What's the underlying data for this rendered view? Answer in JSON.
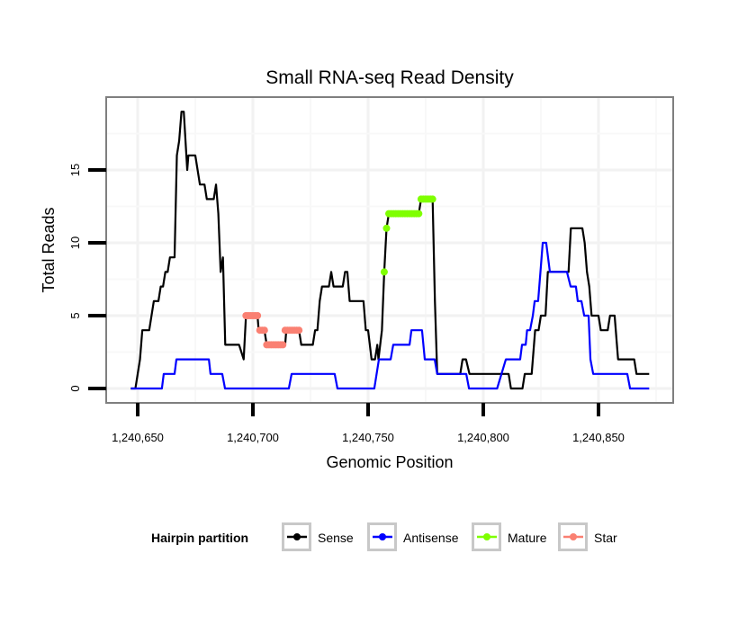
{
  "chart_data": {
    "type": "line",
    "title": "Small RNA-seq Read Density",
    "xlabel": "Genomic Position",
    "ylabel": "Total Reads",
    "xlim": [
      1240636,
      1240874
    ],
    "ylim": [
      -1,
      20
    ],
    "xticks": [
      1240650,
      1240700,
      1240750,
      1240800,
      1240850
    ],
    "xtick_labels": [
      "1,240,650",
      "1,240,700",
      "1,240,750",
      "1,240,800",
      "1,240,850"
    ],
    "yticks": [
      0,
      5,
      10,
      15
    ],
    "ytick_labels": [
      "0",
      "5",
      "10",
      "15"
    ],
    "grid": true,
    "legend": {
      "title": "Hairpin partition",
      "placement": "bottom",
      "entries": [
        "Sense",
        "Antisense",
        "Mature",
        "Star"
      ]
    },
    "colors": {
      "Sense": "#000000",
      "Antisense": "#0000ff",
      "Mature": "#7fff00",
      "Star": "#fa8072"
    },
    "series": [
      {
        "name": "Sense",
        "style": "line",
        "points": [
          [
            1240647,
            0
          ],
          [
            1240649,
            0
          ],
          [
            1240651,
            2
          ],
          [
            1240652,
            4
          ],
          [
            1240655,
            4
          ],
          [
            1240657,
            6
          ],
          [
            1240659,
            6
          ],
          [
            1240660,
            7
          ],
          [
            1240661,
            7
          ],
          [
            1240662,
            8
          ],
          [
            1240663,
            8
          ],
          [
            1240664,
            9
          ],
          [
            1240666,
            9
          ],
          [
            1240667,
            16
          ],
          [
            1240668,
            17
          ],
          [
            1240669,
            19
          ],
          [
            1240670,
            19
          ],
          [
            1240671.5,
            15
          ],
          [
            1240672,
            16
          ],
          [
            1240675,
            16
          ],
          [
            1240677,
            14
          ],
          [
            1240679,
            14
          ],
          [
            1240680,
            13
          ],
          [
            1240683,
            13
          ],
          [
            1240684,
            14
          ],
          [
            1240685,
            12
          ],
          [
            1240686,
            8
          ],
          [
            1240687,
            9
          ],
          [
            1240688,
            3
          ],
          [
            1240694,
            3
          ],
          [
            1240696,
            2
          ],
          [
            1240697,
            5
          ],
          [
            1240702,
            5
          ],
          [
            1240702.5,
            4
          ],
          [
            1240705,
            4
          ],
          [
            1240706,
            3
          ],
          [
            1240714,
            3
          ],
          [
            1240714.5,
            4
          ],
          [
            1240720,
            4
          ],
          [
            1240721,
            3
          ],
          [
            1240726,
            3
          ],
          [
            1240727,
            4
          ],
          [
            1240728,
            4
          ],
          [
            1240729,
            6
          ],
          [
            1240730,
            7
          ],
          [
            1240733,
            7
          ],
          [
            1240734,
            8
          ],
          [
            1240735,
            7
          ],
          [
            1240739,
            7
          ],
          [
            1240740,
            8
          ],
          [
            1240741,
            8
          ],
          [
            1240742,
            6
          ],
          [
            1240748,
            6
          ],
          [
            1240749,
            4
          ],
          [
            1240750,
            4
          ],
          [
            1240751.5,
            2
          ],
          [
            1240753,
            2
          ],
          [
            1240754,
            3
          ],
          [
            1240754.5,
            2
          ],
          [
            1240756,
            4
          ],
          [
            1240757,
            8
          ],
          [
            1240758,
            11
          ],
          [
            1240759,
            12
          ],
          [
            1240772,
            12
          ],
          [
            1240773,
            13
          ],
          [
            1240778,
            13
          ],
          [
            1240779,
            6
          ],
          [
            1240780,
            1
          ],
          [
            1240790,
            1
          ],
          [
            1240791,
            2
          ],
          [
            1240792.5,
            2
          ],
          [
            1240794,
            1
          ],
          [
            1240811,
            1
          ],
          [
            1240812,
            0
          ],
          [
            1240817,
            0
          ],
          [
            1240818,
            1
          ],
          [
            1240821,
            1
          ],
          [
            1240822,
            3
          ],
          [
            1240822.5,
            4
          ],
          [
            1240824,
            4
          ],
          [
            1240825,
            5
          ],
          [
            1240827,
            5
          ],
          [
            1240828,
            8
          ],
          [
            1240837,
            8
          ],
          [
            1240838,
            11
          ],
          [
            1240843,
            11
          ],
          [
            1240844,
            10
          ],
          [
            1240845,
            8
          ],
          [
            1240846,
            7
          ],
          [
            1240847,
            5
          ],
          [
            1240850,
            5
          ],
          [
            1240851,
            4
          ],
          [
            1240854,
            4
          ],
          [
            1240855,
            5
          ],
          [
            1240857,
            5
          ],
          [
            1240858.5,
            2
          ],
          [
            1240865.5,
            2
          ],
          [
            1240866.5,
            1
          ],
          [
            1240872,
            1
          ]
        ]
      },
      {
        "name": "Antisense",
        "style": "line",
        "points": [
          [
            1240647,
            0
          ],
          [
            1240660.5,
            0
          ],
          [
            1240661.3,
            1
          ],
          [
            1240666,
            1
          ],
          [
            1240666.8,
            2
          ],
          [
            1240680.9,
            2
          ],
          [
            1240681.6,
            1
          ],
          [
            1240686.7,
            1
          ],
          [
            1240687.9,
            0
          ],
          [
            1240715.6,
            0
          ],
          [
            1240716.8,
            1
          ],
          [
            1240735.5,
            1
          ],
          [
            1240736.7,
            0
          ],
          [
            1240752.7,
            0
          ],
          [
            1240754.7,
            2
          ],
          [
            1240759.8,
            2
          ],
          [
            1240760.9,
            3
          ],
          [
            1240768,
            3
          ],
          [
            1240768.8,
            4
          ],
          [
            1240773.4,
            4
          ],
          [
            1240774.6,
            2
          ],
          [
            1240778.9,
            2
          ],
          [
            1240780,
            1
          ],
          [
            1240792.6,
            1
          ],
          [
            1240793.8,
            0
          ],
          [
            1240806,
            0
          ],
          [
            1240809.8,
            2
          ],
          [
            1240816,
            2
          ],
          [
            1240816.8,
            3
          ],
          [
            1240818.4,
            3
          ],
          [
            1240819,
            4
          ],
          [
            1240820.3,
            4
          ],
          [
            1240821.5,
            5
          ],
          [
            1240822.3,
            6
          ],
          [
            1240823.8,
            6
          ],
          [
            1240825.8,
            10
          ],
          [
            1240827.3,
            10
          ],
          [
            1240828.9,
            8
          ],
          [
            1240836.3,
            8
          ],
          [
            1240837.9,
            7
          ],
          [
            1240840.2,
            7
          ],
          [
            1240841,
            6
          ],
          [
            1240842.6,
            6
          ],
          [
            1240843.8,
            5
          ],
          [
            1240845.7,
            5
          ],
          [
            1240846.5,
            2
          ],
          [
            1240847.7,
            1
          ],
          [
            1240862.5,
            1
          ],
          [
            1240863.7,
            0
          ],
          [
            1240872,
            0
          ]
        ]
      },
      {
        "name": "Mature",
        "style": "points",
        "points": [
          [
            1240757,
            8
          ],
          [
            1240758,
            11
          ],
          [
            1240759,
            12
          ],
          [
            1240760,
            12
          ],
          [
            1240761,
            12
          ],
          [
            1240762,
            12
          ],
          [
            1240763,
            12
          ],
          [
            1240764,
            12
          ],
          [
            1240765,
            12
          ],
          [
            1240766,
            12
          ],
          [
            1240767,
            12
          ],
          [
            1240768,
            12
          ],
          [
            1240769,
            12
          ],
          [
            1240770,
            12
          ],
          [
            1240771,
            12
          ],
          [
            1240772,
            12
          ],
          [
            1240773,
            13
          ],
          [
            1240774,
            13
          ],
          [
            1240775,
            13
          ],
          [
            1240776,
            13
          ],
          [
            1240777,
            13
          ],
          [
            1240778,
            13
          ]
        ]
      },
      {
        "name": "Star",
        "style": "points",
        "points": [
          [
            1240697,
            5
          ],
          [
            1240698,
            5
          ],
          [
            1240699,
            5
          ],
          [
            1240700,
            5
          ],
          [
            1240701,
            5
          ],
          [
            1240702,
            5
          ],
          [
            1240703,
            4
          ],
          [
            1240704,
            4
          ],
          [
            1240705,
            4
          ],
          [
            1240706,
            3
          ],
          [
            1240707,
            3
          ],
          [
            1240708,
            3
          ],
          [
            1240709,
            3
          ],
          [
            1240710,
            3
          ],
          [
            1240711,
            3
          ],
          [
            1240712,
            3
          ],
          [
            1240713,
            3
          ],
          [
            1240714,
            4
          ],
          [
            1240715,
            4
          ],
          [
            1240716,
            4
          ],
          [
            1240717,
            4
          ],
          [
            1240718,
            4
          ],
          [
            1240719,
            4
          ],
          [
            1240720,
            4
          ]
        ]
      }
    ]
  }
}
